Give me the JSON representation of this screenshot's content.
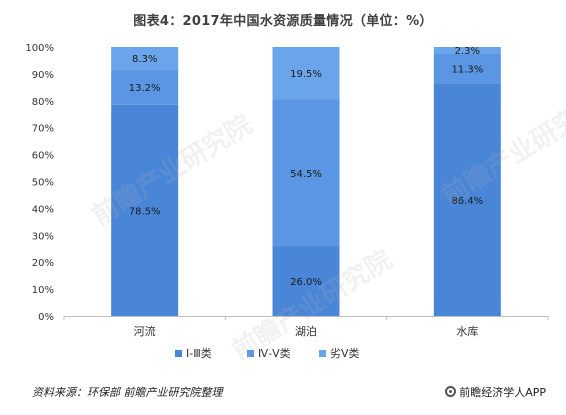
{
  "header": {
    "title": "图表4：2017年中国水资源质量情况（单位：%）"
  },
  "chart_data": {
    "type": "bar",
    "stacked": true,
    "categories": [
      "河流",
      "湖泊",
      "水库"
    ],
    "series": [
      {
        "name": "Ⅰ-Ⅲ类",
        "values": [
          78.5,
          26.0,
          86.4
        ],
        "labels": [
          "78.5%",
          "26.0%",
          "86.4%"
        ],
        "color": "#4a86d8"
      },
      {
        "name": "Ⅳ-Ⅴ类",
        "values": [
          13.2,
          54.5,
          11.3
        ],
        "labels": [
          "13.2%",
          "54.5%",
          "11.3%"
        ],
        "color": "#5a96e3"
      },
      {
        "name": "劣Ⅴ类",
        "values": [
          8.3,
          19.5,
          2.3
        ],
        "labels": [
          "8.3%",
          "19.5%",
          "2.3%"
        ],
        "color": "#6aa5ec"
      }
    ],
    "yticks": [
      "0%",
      "10%",
      "20%",
      "30%",
      "40%",
      "50%",
      "60%",
      "70%",
      "80%",
      "90%",
      "100%"
    ],
    "ylim": [
      0,
      100
    ],
    "grid": false,
    "legend": "bottom-center"
  },
  "footer": {
    "source": "资料来源：环保部 前瞻产业研究院整理",
    "brand": "前瞻经济学人APP"
  },
  "watermark": {
    "text": "前瞻产业研究院"
  }
}
